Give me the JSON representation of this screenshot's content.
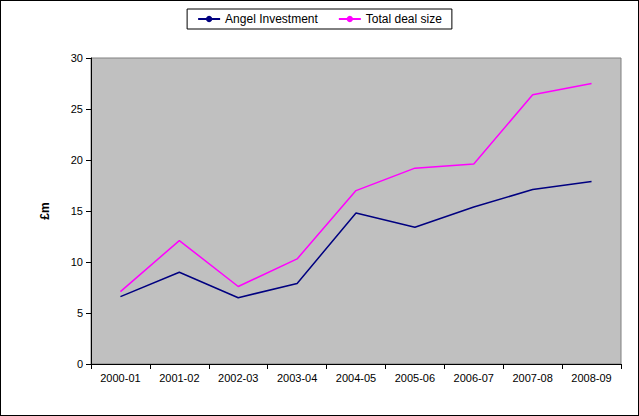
{
  "chart_data": {
    "type": "line",
    "y_label": "£m",
    "categories": [
      "2000-01",
      "2001-02",
      "2002-03",
      "2003-04",
      "2004-05",
      "2005-06",
      "2006-07",
      "2007-08",
      "2008-09"
    ],
    "series": [
      {
        "name": "Angel Investment",
        "color": "#000080",
        "values": [
          6.6,
          9.0,
          6.5,
          7.9,
          14.8,
          13.4,
          15.4,
          17.1,
          17.9
        ]
      },
      {
        "name": "Total deal size",
        "color": "#ff00ff",
        "values": [
          7.1,
          12.1,
          7.6,
          10.3,
          17.0,
          19.2,
          19.6,
          26.4,
          27.5
        ]
      }
    ],
    "ylim": [
      0,
      30
    ],
    "yticks": [
      0,
      5,
      10,
      15,
      20,
      25,
      30
    ],
    "grid": false,
    "legend": "top"
  }
}
